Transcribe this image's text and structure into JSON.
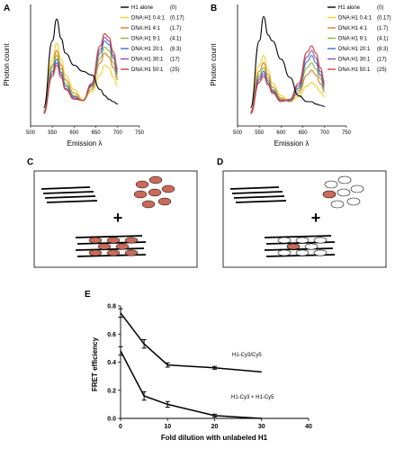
{
  "panels": {
    "a": "A",
    "b": "B",
    "c": "C",
    "d": "D",
    "e": "E"
  },
  "spectra_xlabel": "Emission λ",
  "spectra_ylabel": "Photon count",
  "spectra_xticks": [
    "500",
    "550",
    "600",
    "650",
    "700",
    "750"
  ],
  "legend": [
    {
      "name": "H1 alone",
      "ratio": "(0)",
      "color": "#000000"
    },
    {
      "name": "DNA:H1 0.4:1",
      "ratio": "(0.17)",
      "color": "#f2d21b"
    },
    {
      "name": "DNA:H1   4:1",
      "ratio": "(1.7)",
      "color": "#e07a2a"
    },
    {
      "name": "DNA:H1   9:1",
      "ratio": "(4.1)",
      "color": "#88b83a"
    },
    {
      "name": "DNA:H1 20:1",
      "ratio": "(8.3)",
      "color": "#3a6fc0"
    },
    {
      "name": "DNA:H1 30:1",
      "ratio": "(17)",
      "color": "#8a4fb0"
    },
    {
      "name": "DNA:H1 50:1",
      "ratio": "(25)",
      "color": "#d03a3a"
    }
  ],
  "colors": {
    "histone_filled": "#c96a5a",
    "histone_empty": "#ffffff",
    "stroke": "#000000"
  },
  "chart_data": [
    {
      "type": "line",
      "panel": "A",
      "xlabel": "Emission λ",
      "ylabel": "Photon count",
      "xlim": [
        500,
        750
      ],
      "x": [
        530,
        550,
        560,
        570,
        580,
        600,
        620,
        640,
        660,
        670,
        680,
        690,
        700
      ],
      "series": [
        {
          "name": "H1 alone (0)",
          "values": [
            0.15,
            0.7,
            0.88,
            0.72,
            0.6,
            0.5,
            0.45,
            0.42,
            0.3,
            0.25,
            0.22,
            0.2,
            0.18
          ]
        },
        {
          "name": "DNA:H1 0.4:1 (0.17)",
          "values": [
            0.12,
            0.55,
            0.68,
            0.55,
            0.42,
            0.3,
            0.22,
            0.28,
            0.42,
            0.5,
            0.48,
            0.4,
            0.33
          ]
        },
        {
          "name": "DNA:H1 4:1 (1.7)",
          "values": [
            0.12,
            0.5,
            0.62,
            0.5,
            0.38,
            0.27,
            0.21,
            0.3,
            0.52,
            0.6,
            0.57,
            0.48,
            0.38
          ]
        },
        {
          "name": "DNA:H1 9:1 (4.1)",
          "values": [
            0.12,
            0.48,
            0.58,
            0.47,
            0.35,
            0.25,
            0.21,
            0.32,
            0.56,
            0.65,
            0.62,
            0.52,
            0.4
          ]
        },
        {
          "name": "DNA:H1 20:1 (8.3)",
          "values": [
            0.11,
            0.45,
            0.55,
            0.44,
            0.33,
            0.24,
            0.21,
            0.33,
            0.6,
            0.7,
            0.67,
            0.56,
            0.43
          ]
        },
        {
          "name": "DNA:H1 30:1 (17)",
          "values": [
            0.11,
            0.43,
            0.52,
            0.42,
            0.31,
            0.23,
            0.21,
            0.34,
            0.63,
            0.73,
            0.7,
            0.58,
            0.45
          ]
        },
        {
          "name": "DNA:H1 50:1 (25)",
          "values": [
            0.1,
            0.41,
            0.5,
            0.4,
            0.3,
            0.22,
            0.21,
            0.35,
            0.66,
            0.76,
            0.73,
            0.61,
            0.47
          ]
        }
      ]
    },
    {
      "type": "line",
      "panel": "B",
      "xlabel": "Emission λ",
      "ylabel": "Photon count",
      "xlim": [
        500,
        750
      ],
      "x": [
        530,
        550,
        560,
        570,
        580,
        600,
        620,
        640,
        660,
        670,
        680,
        690,
        700
      ],
      "series": [
        {
          "name": "H1 alone (0)",
          "values": [
            0.15,
            0.7,
            0.9,
            0.75,
            0.7,
            0.55,
            0.4,
            0.25,
            0.2,
            0.2,
            0.18,
            0.17,
            0.16
          ]
        },
        {
          "name": "DNA:H1 0.4:1 (0.17)",
          "values": [
            0.12,
            0.5,
            0.58,
            0.46,
            0.35,
            0.25,
            0.2,
            0.24,
            0.33,
            0.36,
            0.33,
            0.28,
            0.24
          ]
        },
        {
          "name": "DNA:H1 4:1 (1.7)",
          "values": [
            0.12,
            0.45,
            0.52,
            0.42,
            0.32,
            0.23,
            0.2,
            0.27,
            0.42,
            0.46,
            0.42,
            0.35,
            0.28
          ]
        },
        {
          "name": "DNA:H1 9:1 (4.1)",
          "values": [
            0.11,
            0.42,
            0.48,
            0.39,
            0.3,
            0.22,
            0.2,
            0.29,
            0.48,
            0.52,
            0.47,
            0.39,
            0.3
          ]
        },
        {
          "name": "DNA:H1 20:1 (8.3)",
          "values": [
            0.11,
            0.4,
            0.45,
            0.37,
            0.29,
            0.21,
            0.21,
            0.31,
            0.53,
            0.58,
            0.52,
            0.42,
            0.32
          ]
        },
        {
          "name": "DNA:H1 30:1 (17)",
          "values": [
            0.11,
            0.38,
            0.43,
            0.35,
            0.28,
            0.21,
            0.21,
            0.33,
            0.57,
            0.62,
            0.56,
            0.45,
            0.34
          ]
        },
        {
          "name": "DNA:H1 50:1 (25)",
          "values": [
            0.1,
            0.36,
            0.41,
            0.34,
            0.27,
            0.2,
            0.22,
            0.35,
            0.61,
            0.66,
            0.6,
            0.48,
            0.36
          ]
        }
      ]
    },
    {
      "type": "line",
      "panel": "E",
      "xlabel": "Fold dilution with unlabeled H1",
      "ylabel": "FRET efficiency",
      "xlim": [
        0,
        40
      ],
      "ylim": [
        0,
        0.8
      ],
      "xticks": [
        "0",
        "10",
        "20",
        "30",
        "40"
      ],
      "yticks": [
        "0.0",
        "0.2",
        "0.4",
        "0.6",
        "0.8"
      ],
      "series": [
        {
          "name": "H1-Cy3/Cy5",
          "x": [
            0,
            5,
            10,
            20,
            30
          ],
          "values": [
            0.75,
            0.53,
            0.38,
            0.36,
            0.33
          ],
          "err": [
            0.03,
            0.03,
            0.015,
            0.01,
            0
          ]
        },
        {
          "name": "H1-Cy3 + H1-Cy5",
          "x": [
            0,
            5,
            10,
            20,
            30
          ],
          "values": [
            0.48,
            0.16,
            0.1,
            0.02,
            0.0
          ],
          "err": [
            0.03,
            0.03,
            0.02,
            0.01,
            0
          ]
        }
      ]
    }
  ]
}
